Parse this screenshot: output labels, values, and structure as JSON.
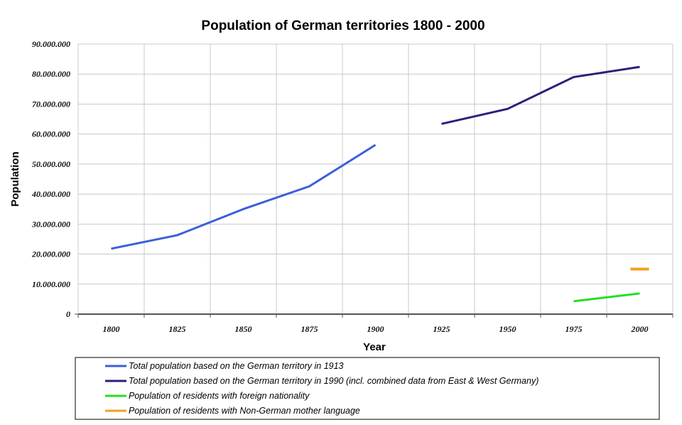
{
  "chart_data": {
    "type": "line",
    "title": "Population of German territories 1800 - 2000",
    "xlabel": "Year",
    "ylabel": "Population",
    "categories": [
      "1800",
      "1825",
      "1850",
      "1875",
      "1900",
      "1925",
      "1950",
      "1975",
      "2000"
    ],
    "yticks": [
      "0",
      "10.000.000",
      "20.000.000",
      "30.000.000",
      "40.000.000",
      "50.000.000",
      "60.000.000",
      "70.000.000",
      "80.000.000",
      "90.000.000"
    ],
    "ylim": [
      0,
      90000000
    ],
    "grid": true,
    "legend_placement": "bottom",
    "series": [
      {
        "name": "Total population based on the German territory in 1913",
        "color": "#3a5fd9",
        "values": [
          21800000,
          26300000,
          35000000,
          42600000,
          56400000,
          null,
          null,
          null,
          null
        ]
      },
      {
        "name": "Total population based on the German territory in 1990 (incl. combined data from East & West Germany)",
        "color": "#2a1f7a",
        "values": [
          null,
          null,
          null,
          null,
          null,
          63400000,
          68400000,
          79000000,
          82400000
        ]
      },
      {
        "name": "Population of residents with foreign nationality",
        "color": "#22e022",
        "values": [
          null,
          null,
          null,
          null,
          null,
          null,
          null,
          4300000,
          6900000
        ]
      },
      {
        "name": "Population of residents with Non-German mother language",
        "color": "#f0a020",
        "values": [
          null,
          null,
          null,
          null,
          null,
          null,
          null,
          null,
          15000000
        ]
      }
    ]
  }
}
